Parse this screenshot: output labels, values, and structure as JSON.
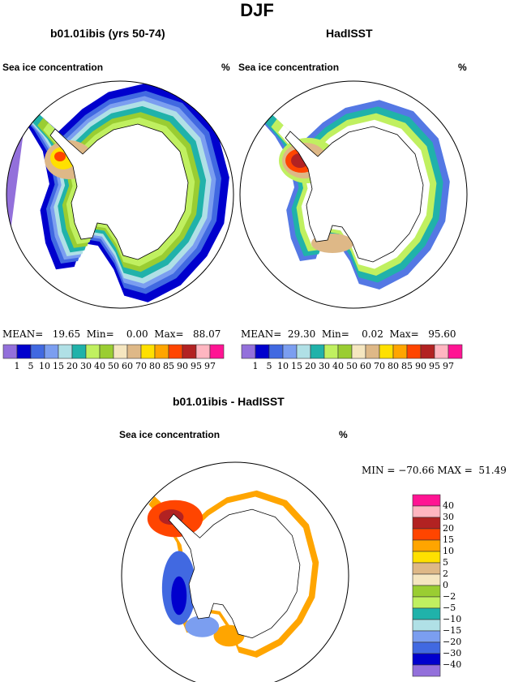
{
  "title": "DJF",
  "panels": [
    {
      "heading": "b01.01ibis (yrs 50-74)",
      "variable": "Sea ice concentration",
      "units": "%",
      "stats": {
        "mean_label": "MEAN=",
        "mean": "19.65",
        "min_label": "Min=",
        "min": "0.00",
        "max_label": "Max=",
        "max": "88.07"
      }
    },
    {
      "heading": "HadISST",
      "variable": "Sea ice concentration",
      "units": "%",
      "stats": {
        "mean_label": "MEAN=",
        "mean": "29.30",
        "min_label": "Min=",
        "min": "0.02",
        "max_label": "Max=",
        "max": "95.60"
      }
    },
    {
      "heading": "b01.01ibis - HadISST",
      "variable": "Sea ice concentration",
      "units": "%",
      "stats": {
        "text": "MIN = −70.66 MAX =  51.49"
      }
    }
  ],
  "colorbar_abs": {
    "labels": [
      "1",
      "5",
      "10",
      "15",
      "20",
      "30",
      "40",
      "50",
      "60",
      "70",
      "80",
      "85",
      "90",
      "95",
      "97"
    ],
    "colors": [
      "#9370DB",
      "#0000CD",
      "#4169E1",
      "#7B9EF0",
      "#B0E0E6",
      "#20B2AA",
      "#C0F060",
      "#9ACD32",
      "#F5E6C0",
      "#DEB887",
      "#FFE000",
      "#FFA500",
      "#FF4500",
      "#B22222",
      "#FFB6C1",
      "#FF1493"
    ]
  },
  "colorbar_diff": {
    "labels": [
      "40",
      "30",
      "20",
      "15",
      "10",
      "5",
      "2",
      "0",
      "−2",
      "−5",
      "−10",
      "−15",
      "−20",
      "−30",
      "−40"
    ],
    "colors": [
      "#FF1493",
      "#FFB6C1",
      "#B22222",
      "#FF4500",
      "#FFA500",
      "#FFE000",
      "#DEB887",
      "#F5E6C0",
      "#9ACD32",
      "#C0F060",
      "#20B2AA",
      "#B0E0E6",
      "#7B9EF0",
      "#4169E1",
      "#0000CD",
      "#9370DB"
    ]
  }
}
